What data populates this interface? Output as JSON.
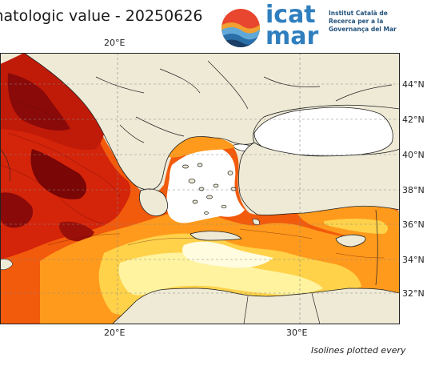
{
  "title": "matologic value - 20250626",
  "logo": {
    "word_top": "icat",
    "word_bottom": "mar",
    "institute_lines": [
      "Institut Català de",
      "Recerca per a la",
      "Governança del Mar"
    ]
  },
  "axes": {
    "lon_top": [
      "20°E"
    ],
    "lon_bottom": [
      "20°E",
      "30°E"
    ],
    "lat": [
      "44°N",
      "42°N",
      "40°N",
      "38°N",
      "36°N",
      "34°N",
      "32°N"
    ]
  },
  "footer": "Isolines plotted every",
  "colors": {
    "land": "#eeead6",
    "sea_white": "#ffffff",
    "pale_yellow": "#fff3a0",
    "yellow": "#ffd24a",
    "orange": "#ff9a1c",
    "red_orange": "#f25a0c",
    "red": "#d4240a",
    "dark_red": "#8a0a0a",
    "brand_blue": "#2f7fbf"
  }
}
